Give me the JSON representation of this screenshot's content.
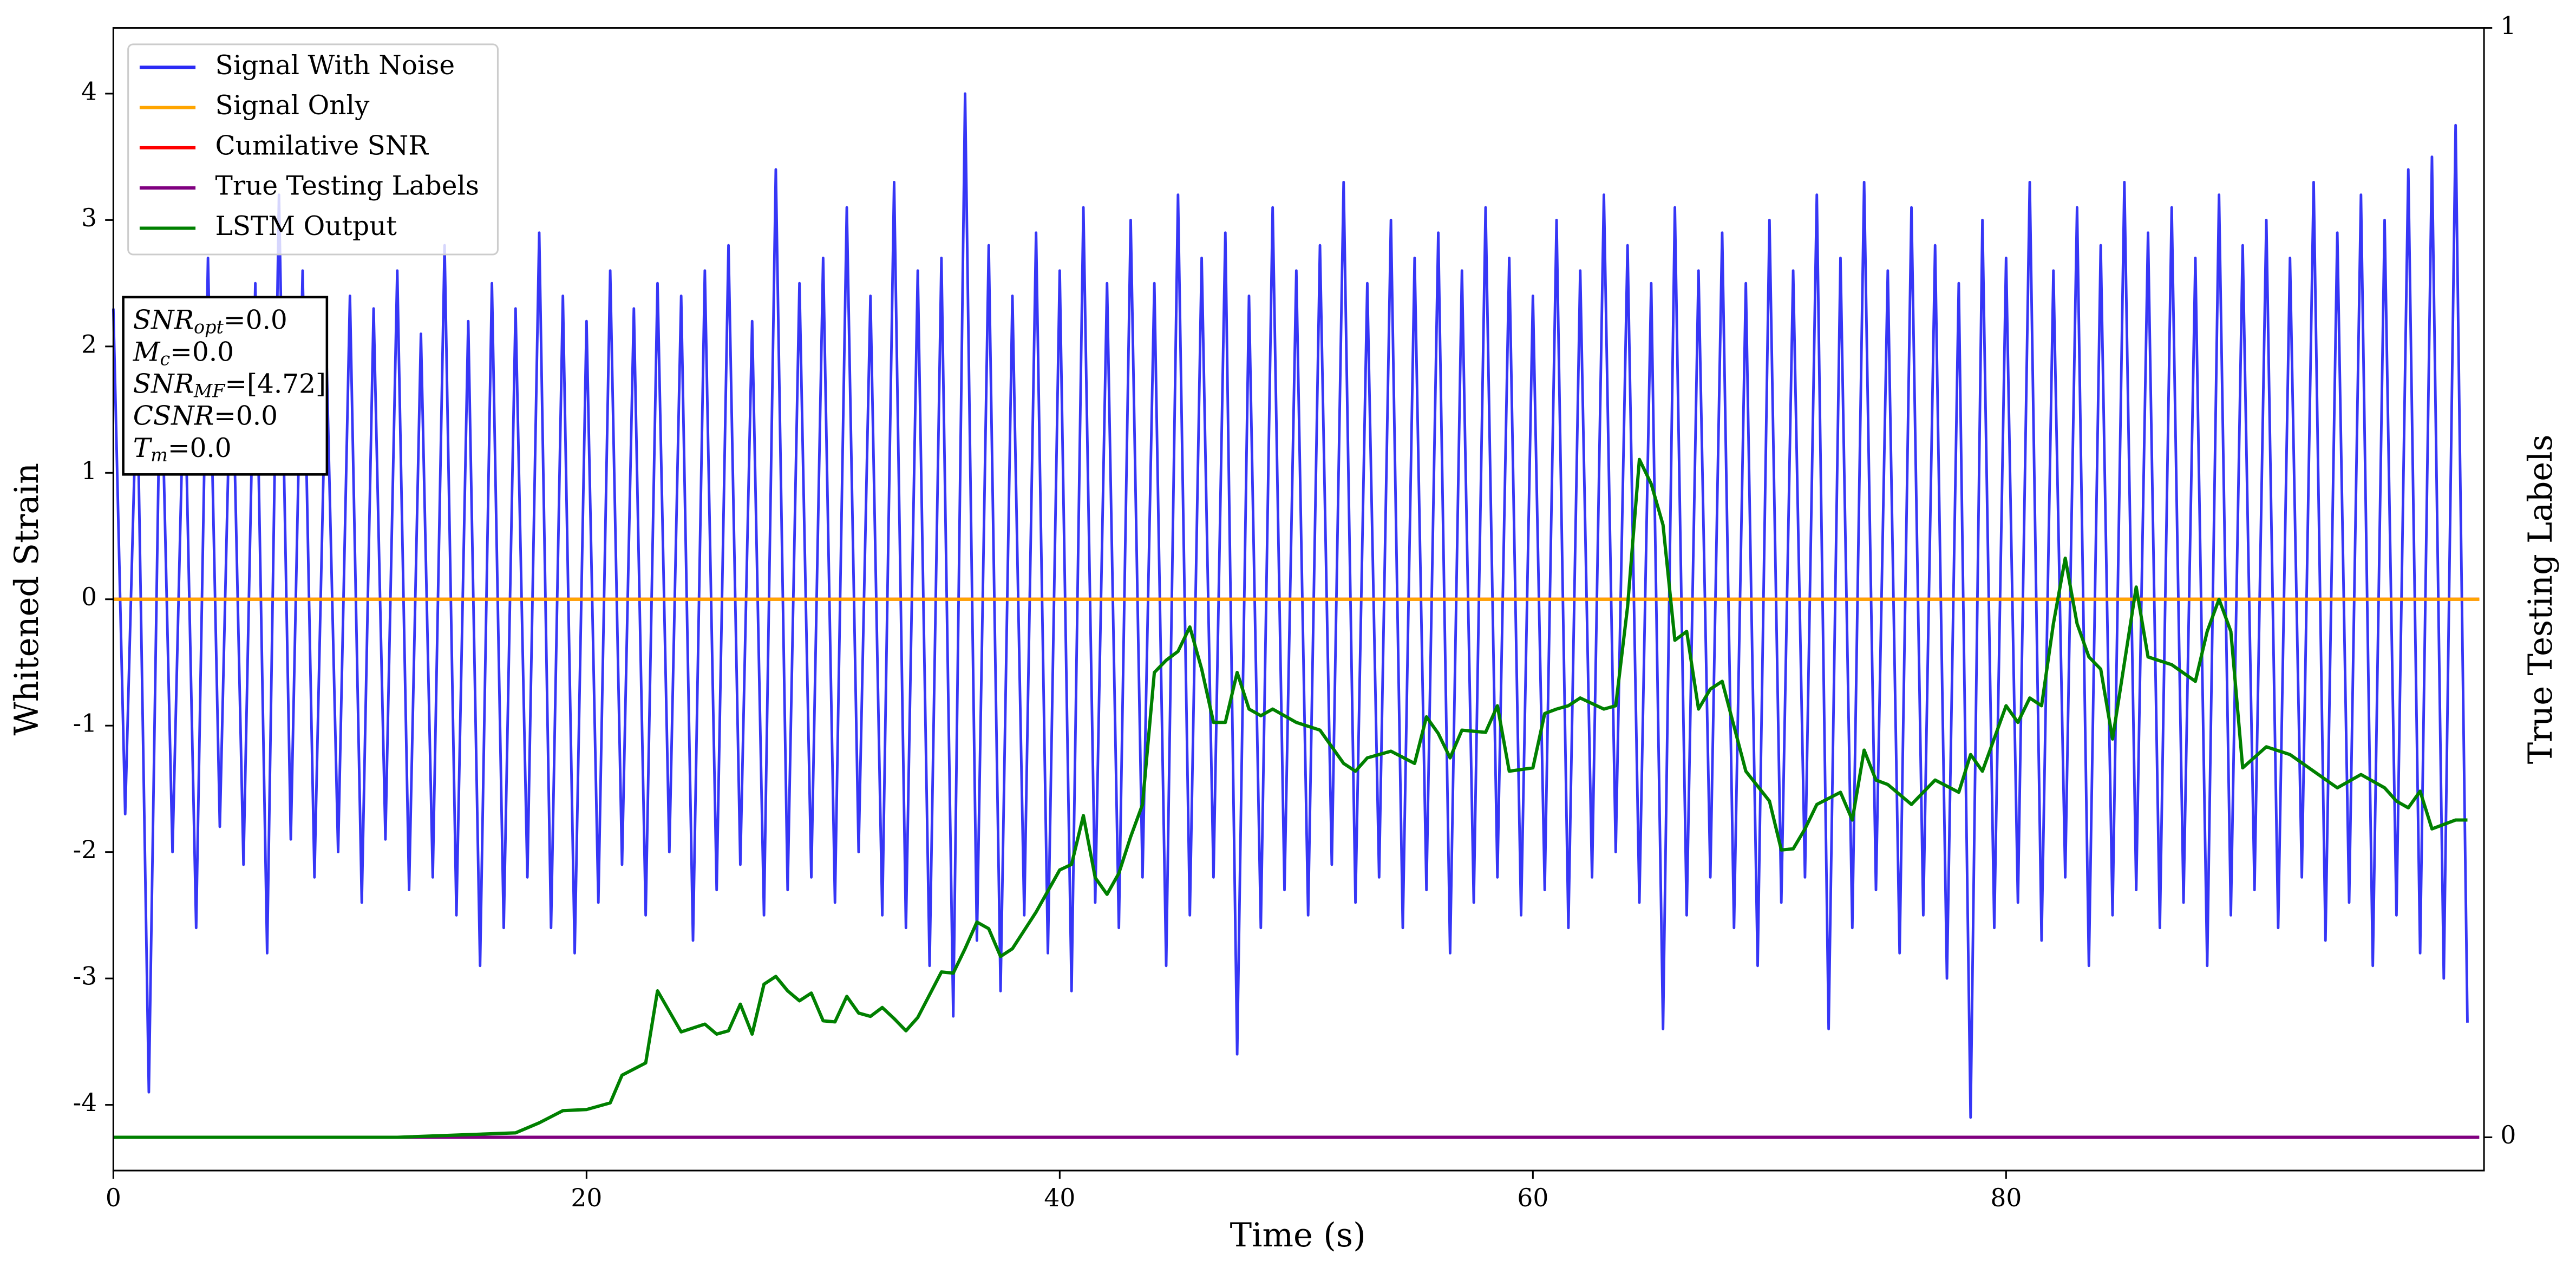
{
  "chart_data": {
    "type": "line",
    "xlabel": "Time (s)",
    "ylabel": "Whitened Strain",
    "y2label": "True Testing Labels",
    "xlim": [
      0,
      100.2
    ],
    "xticks": [
      0,
      20,
      40,
      60,
      80
    ],
    "ylim": [
      -4.52,
      4.52
    ],
    "yticks": [
      -4,
      -3,
      -2,
      -1,
      0,
      1,
      2,
      3,
      4
    ],
    "y2lim": [
      -0.03,
      1.0
    ],
    "y2ticks": [
      0,
      1
    ],
    "legend": "upper left",
    "annotation": [
      {
        "text": "SNR",
        "sub": "opt",
        "rest": "=0.0"
      },
      {
        "text": "M",
        "sub": "c",
        "rest": "=0.0"
      },
      {
        "text": "SNR",
        "sub": "MF",
        "rest": "=[4.72]"
      },
      {
        "text": "CSNR",
        "rest": "=0.0"
      },
      {
        "text": "T",
        "sub": "m",
        "rest": "=0.0"
      }
    ],
    "series": [
      {
        "name": "Signal With Noise",
        "color": "#2b2bf5",
        "x": [
          0,
          0.5,
          1,
          1.5,
          2,
          2.5,
          3,
          3.5,
          4,
          4.5,
          5,
          5.5,
          6,
          6.5,
          7,
          7.5,
          8,
          8.5,
          9,
          9.5,
          10,
          10.5,
          11,
          11.5,
          12,
          12.5,
          13,
          13.5,
          14,
          14.5,
          15,
          15.5,
          16,
          16.5,
          17,
          17.5,
          18,
          18.5,
          19,
          19.5,
          20,
          20.5,
          21,
          21.5,
          22,
          22.5,
          23,
          23.5,
          24,
          24.5,
          25,
          25.5,
          26,
          26.5,
          27,
          27.5,
          28,
          28.5,
          29,
          29.5,
          30,
          30.5,
          31,
          31.5,
          32,
          32.5,
          33,
          33.5,
          34,
          34.5,
          35,
          35.5,
          36,
          36.5,
          37,
          37.5,
          38,
          38.5,
          39,
          39.5,
          40,
          40.5,
          41,
          41.5,
          42,
          42.5,
          43,
          43.5,
          44,
          44.5,
          45,
          45.5,
          46,
          46.5,
          47,
          47.5,
          48,
          48.5,
          49,
          49.5,
          50,
          50.5,
          51,
          51.5,
          52,
          52.5,
          53,
          53.5,
          54,
          54.5,
          55,
          55.5,
          56,
          56.5,
          57,
          57.5,
          58,
          58.5,
          59,
          59.5,
          60,
          60.5,
          61,
          61.5,
          62,
          62.5,
          63,
          63.5,
          64,
          64.5,
          65,
          65.5,
          66,
          66.5,
          67,
          67.5,
          68,
          68.5,
          69,
          69.5,
          70,
          70.5,
          71,
          71.5,
          72,
          72.5,
          73,
          73.5,
          74,
          74.5,
          75,
          75.5,
          76,
          76.5,
          77,
          77.5,
          78,
          78.5,
          79,
          79.5,
          80,
          80.5,
          81,
          81.5,
          82,
          82.5,
          83,
          83.5,
          84,
          84.5,
          85,
          85.5,
          86,
          86.5,
          87,
          87.5,
          88,
          88.5,
          89,
          89.5,
          90,
          90.5,
          91,
          91.5,
          92,
          92.5,
          93,
          93.5,
          94,
          94.5,
          95,
          95.5,
          96,
          96.5,
          97,
          97.5,
          98,
          98.5,
          99,
          99.5
        ],
        "values": [
          2.3,
          -1.7,
          1.8,
          -3.9,
          2.1,
          -2.0,
          1.9,
          -2.6,
          2.7,
          -1.8,
          2.2,
          -2.1,
          2.5,
          -2.8,
          3.2,
          -1.9,
          2.6,
          -2.2,
          2.0,
          -2.0,
          2.4,
          -2.4,
          2.3,
          -1.9,
          2.6,
          -2.3,
          2.1,
          -2.2,
          2.8,
          -2.5,
          2.2,
          -2.9,
          2.5,
          -2.6,
          2.3,
          -2.2,
          2.9,
          -2.6,
          2.4,
          -2.8,
          2.2,
          -2.4,
          2.6,
          -2.1,
          2.3,
          -2.5,
          2.5,
          -2.0,
          2.4,
          -2.7,
          2.6,
          -2.3,
          2.8,
          -2.1,
          2.2,
          -2.5,
          3.4,
          -2.3,
          2.5,
          -2.2,
          2.7,
          -2.4,
          3.1,
          -2.0,
          2.4,
          -2.5,
          3.3,
          -2.6,
          2.6,
          -2.9,
          2.7,
          -3.3,
          4.0,
          -2.7,
          2.8,
          -3.1,
          2.4,
          -2.5,
          2.9,
          -2.8,
          2.6,
          -3.1,
          3.1,
          -2.4,
          2.5,
          -2.6,
          3.0,
          -2.2,
          2.5,
          -2.9,
          3.2,
          -2.5,
          2.7,
          -2.2,
          2.9,
          -3.6,
          2.4,
          -2.6,
          3.1,
          -2.3,
          2.6,
          -2.5,
          2.8,
          -2.1,
          3.3,
          -2.4,
          2.5,
          -2.2,
          3.0,
          -2.6,
          2.7,
          -2.3,
          2.9,
          -2.8,
          2.6,
          -2.4,
          3.1,
          -2.2,
          2.7,
          -2.5,
          2.4,
          -2.3,
          3.0,
          -2.6,
          2.6,
          -2.2,
          3.2,
          -2.0,
          2.8,
          -2.4,
          2.5,
          -3.4,
          3.1,
          -2.5,
          2.6,
          -2.2,
          2.9,
          -2.6,
          2.5,
          -2.9,
          3.0,
          -2.4,
          2.6,
          -2.2,
          3.2,
          -3.4,
          2.7,
          -2.6,
          3.3,
          -2.3,
          2.6,
          -2.8,
          3.1,
          -2.5,
          2.8,
          -3.0,
          2.5,
          -4.1,
          3.0,
          -2.6,
          2.7,
          -2.4,
          3.3,
          -2.7,
          2.6,
          -2.2,
          3.1,
          -2.9,
          2.8,
          -2.5,
          3.3,
          -2.3,
          2.9,
          -2.6,
          3.1,
          -2.4,
          2.7,
          -2.9,
          3.2,
          -2.5,
          2.8,
          -2.3,
          3.0,
          -2.6,
          2.7,
          -2.2,
          3.3,
          -2.7,
          2.9,
          -2.4,
          3.2,
          -2.9,
          3.0,
          -2.5,
          3.4,
          -2.8,
          3.5,
          -3.0,
          3.75,
          -3.35
        ]
      },
      {
        "name": "Signal Only",
        "color": "#ffa500",
        "x": [
          0,
          100
        ],
        "values": [
          0,
          0
        ]
      },
      {
        "name": "Cumilative SNR",
        "color": "#ff0000",
        "x": [
          0,
          100
        ],
        "values": [
          0,
          0
        ]
      },
      {
        "name": "True Testing Labels",
        "color": "#800080",
        "axis": "y2",
        "x": [
          0,
          100
        ],
        "values": [
          0,
          0
        ]
      },
      {
        "name": "LSTM Output",
        "color": "#008000",
        "axis": "y2",
        "x": [
          0,
          12,
          17,
          18,
          19,
          20,
          21,
          21.5,
          22.5,
          23,
          24,
          25,
          25.5,
          26,
          26.5,
          27,
          27.5,
          28,
          28.5,
          29,
          29.5,
          30,
          30.5,
          31,
          31.5,
          32,
          32.5,
          33,
          33.5,
          34,
          35,
          35.5,
          36,
          36.5,
          37,
          37.5,
          38,
          39,
          40,
          40.5,
          41,
          41.5,
          42,
          42.5,
          43,
          43.5,
          44,
          44.5,
          45,
          45.5,
          46,
          46.5,
          47,
          47.5,
          48,
          48.5,
          49,
          50,
          51,
          52,
          52.5,
          53,
          54,
          55,
          55.5,
          56,
          56.5,
          57,
          58,
          58.5,
          59,
          60,
          60.5,
          61,
          61.5,
          62,
          63,
          63.5,
          64,
          64.5,
          65,
          65.5,
          66,
          66.5,
          67,
          67.5,
          68,
          69,
          70,
          70.5,
          71,
          71.5,
          72,
          73,
          73.5,
          74,
          74.5,
          75,
          76,
          77,
          78,
          78.5,
          79,
          80,
          80.5,
          81,
          81.5,
          82,
          82.5,
          83,
          83.5,
          84,
          84.5,
          85.5,
          86,
          87,
          88,
          88.5,
          89,
          89.5,
          90,
          91,
          92,
          93,
          94,
          95,
          96,
          96.5,
          97,
          97.5,
          98,
          99,
          99.5
        ],
        "values": [
          0,
          0,
          0.004,
          0.013,
          0.024,
          0.025,
          0.031,
          0.056,
          0.067,
          0.132,
          0.095,
          0.102,
          0.093,
          0.096,
          0.12,
          0.093,
          0.138,
          0.145,
          0.132,
          0.123,
          0.13,
          0.105,
          0.104,
          0.127,
          0.112,
          0.109,
          0.117,
          0.107,
          0.096,
          0.108,
          0.149,
          0.148,
          0.17,
          0.194,
          0.188,
          0.163,
          0.17,
          0.203,
          0.241,
          0.246,
          0.29,
          0.234,
          0.219,
          0.238,
          0.271,
          0.3,
          0.419,
          0.43,
          0.438,
          0.46,
          0.422,
          0.374,
          0.374,
          0.419,
          0.386,
          0.38,
          0.386,
          0.374,
          0.367,
          0.337,
          0.33,
          0.342,
          0.348,
          0.337,
          0.379,
          0.364,
          0.342,
          0.367,
          0.365,
          0.389,
          0.33,
          0.333,
          0.382,
          0.386,
          0.389,
          0.396,
          0.386,
          0.389,
          0.478,
          0.611,
          0.589,
          0.552,
          0.448,
          0.456,
          0.386,
          0.404,
          0.411,
          0.33,
          0.303,
          0.259,
          0.26,
          0.278,
          0.3,
          0.311,
          0.286,
          0.349,
          0.322,
          0.318,
          0.3,
          0.322,
          0.311,
          0.345,
          0.33,
          0.389,
          0.374,
          0.396,
          0.389,
          0.463,
          0.522,
          0.463,
          0.433,
          0.422,
          0.359,
          0.496,
          0.433,
          0.426,
          0.411,
          0.456,
          0.485,
          0.456,
          0.333,
          0.352,
          0.345,
          0.33,
          0.315,
          0.327,
          0.315,
          0.303,
          0.297,
          0.312,
          0.278,
          0.286,
          0.286
        ]
      }
    ]
  }
}
